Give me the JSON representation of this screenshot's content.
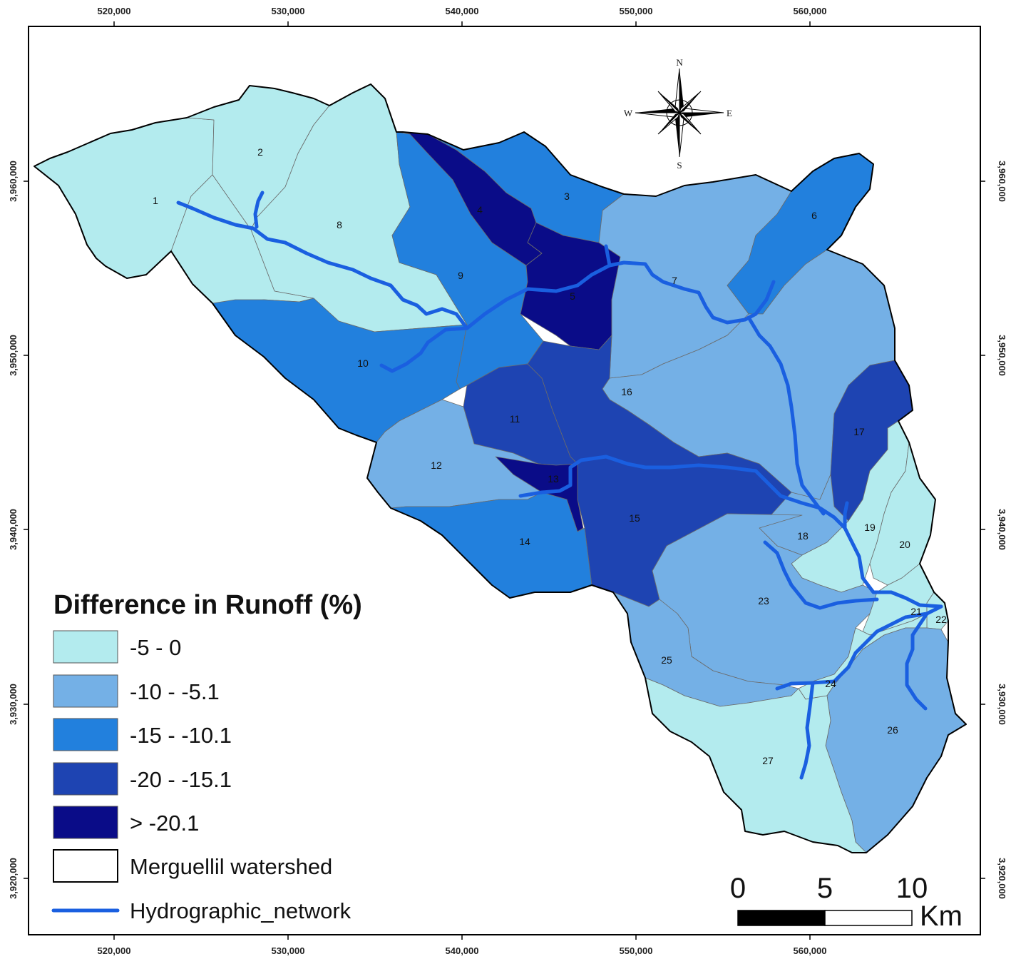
{
  "map": {
    "x_ticks": [
      "520,000",
      "530,000",
      "540,000",
      "550,000",
      "560,000"
    ],
    "y_ticks": [
      "3,960,000",
      "3,950,000",
      "3,940,000",
      "3,930,000",
      "3,920,000"
    ]
  },
  "classes": [
    {
      "key": "c1",
      "label": "-5 - 0",
      "color": "#b3ebee"
    },
    {
      "key": "c2",
      "label": "-10 - -5.1",
      "color": "#74b0e6"
    },
    {
      "key": "c3",
      "label": "-15 - -10.1",
      "color": "#2280dd"
    },
    {
      "key": "c4",
      "label": "-20 - -15.1",
      "color": "#1e44b2"
    },
    {
      "key": "c5",
      "label": "> -20.1",
      "color": "#0a0c88"
    }
  ],
  "subbasins": [
    {
      "id": "1",
      "class": "c1"
    },
    {
      "id": "2",
      "class": "c1"
    },
    {
      "id": "3",
      "class": "c3"
    },
    {
      "id": "4",
      "class": "c5"
    },
    {
      "id": "5",
      "class": "c5"
    },
    {
      "id": "6",
      "class": "c3"
    },
    {
      "id": "7",
      "class": "c2"
    },
    {
      "id": "8",
      "class": "c1"
    },
    {
      "id": "9",
      "class": "c3"
    },
    {
      "id": "10",
      "class": "c3"
    },
    {
      "id": "11",
      "class": "c4"
    },
    {
      "id": "12",
      "class": "c2"
    },
    {
      "id": "13",
      "class": "c5"
    },
    {
      "id": "14",
      "class": "c3"
    },
    {
      "id": "15",
      "class": "c4"
    },
    {
      "id": "16",
      "class": "c2"
    },
    {
      "id": "17",
      "class": "c4"
    },
    {
      "id": "18",
      "class": "c2"
    },
    {
      "id": "19",
      "class": "c1"
    },
    {
      "id": "20",
      "class": "c1"
    },
    {
      "id": "21",
      "class": "c1"
    },
    {
      "id": "22",
      "class": "c1"
    },
    {
      "id": "23",
      "class": "c2"
    },
    {
      "id": "24",
      "class": "c1"
    },
    {
      "id": "25",
      "class": "c2"
    },
    {
      "id": "26",
      "class": "c2"
    },
    {
      "id": "27",
      "class": "c1"
    }
  ],
  "legend": {
    "title": "Difference in Runoff (%)",
    "watershed_label": "Merguellil watershed",
    "network_label": "Hydrographic_network",
    "network_color": "#1a5fe0"
  },
  "compass": {
    "n": "N",
    "s": "S",
    "e": "E",
    "w": "W"
  },
  "scale_bar": {
    "ticks": [
      "0",
      "5",
      "10"
    ],
    "unit": "Km"
  }
}
